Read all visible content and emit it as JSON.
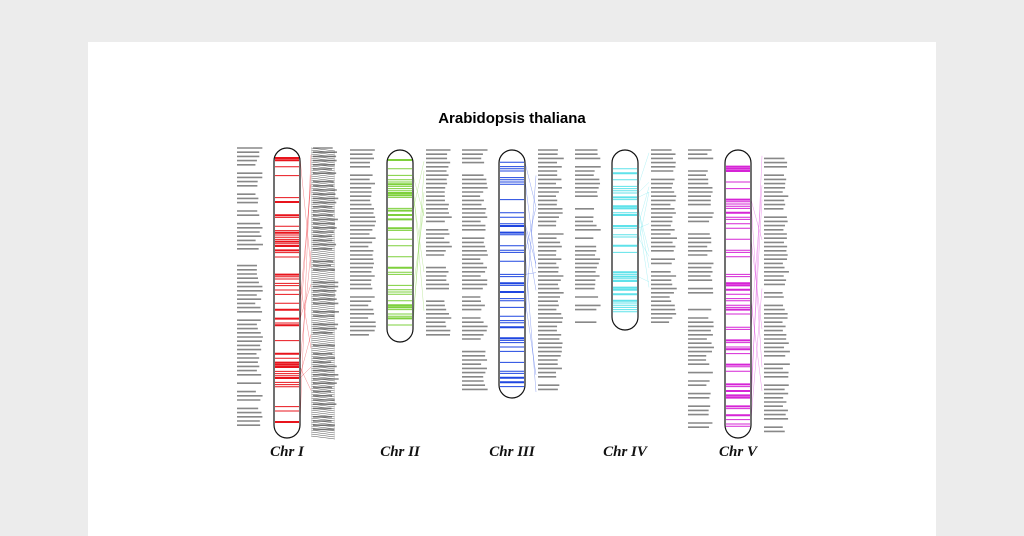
{
  "title": "Arabidopsis thaliana",
  "chromosomes": [
    {
      "label": "Chr I",
      "color": "#e8141c"
    },
    {
      "label": "Chr II",
      "color": "#7ed03c"
    },
    {
      "label": "Chr III",
      "color": "#1f46e0"
    },
    {
      "label": "Chr IV",
      "color": "#5fe2ea"
    },
    {
      "label": "Chr V",
      "color": "#d624d6"
    }
  ]
}
